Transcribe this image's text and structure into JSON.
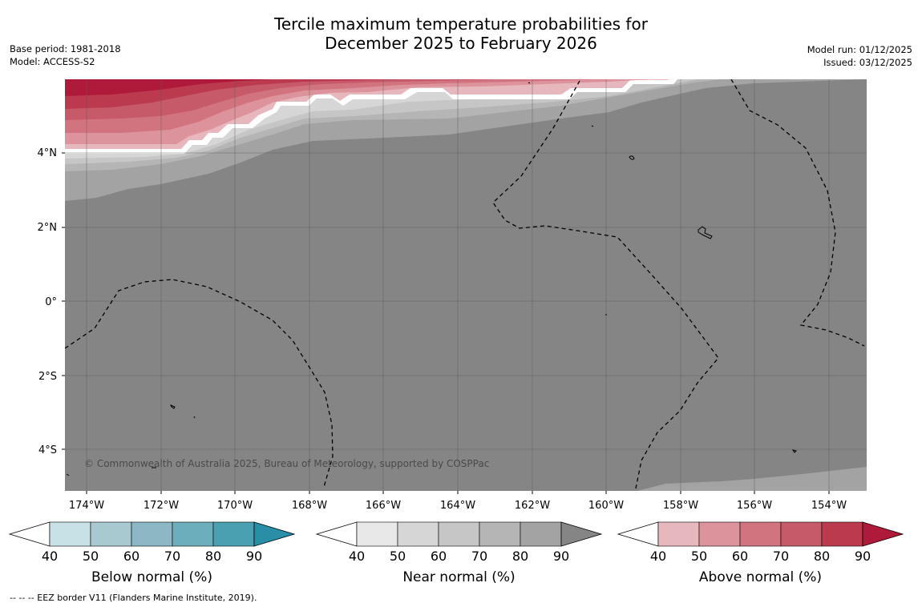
{
  "title_line1": "Tercile maximum temperature probabilities for",
  "title_line2": "December 2025 to February 2026",
  "base_period": "Base period: 1981-2018",
  "model": "Model: ACCESS-S2",
  "model_run": "Model run: 01/12/2025",
  "issued": "Issued: 03/12/2025",
  "lat_labels": [
    "4°N",
    "2°N",
    "0°",
    "2°S",
    "4°S"
  ],
  "lon_labels": [
    "174°W",
    "172°W",
    "170°W",
    "168°W",
    "166°W",
    "164°W",
    "162°W",
    "160°W",
    "158°W",
    "156°W",
    "154°W"
  ],
  "copyright": "© Commonwealth of Australia 2025, Bureau of Meteorology, supported by COSPPac",
  "footnote": "--  --  -- EEZ border V11 (Flanders Marine Institute, 2019).",
  "colorbars": [
    {
      "title": "Below normal (%)",
      "ticks": [
        "40",
        "50",
        "60",
        "70",
        "80",
        "90"
      ],
      "colors": [
        "#ffffff",
        "#c8e1e7",
        "#a9c9d0",
        "#8bb8c4",
        "#6caebb",
        "#4aa0b0",
        "#2a8ea6"
      ]
    },
    {
      "title": "Near normal (%)",
      "ticks": [
        "40",
        "50",
        "60",
        "70",
        "80",
        "90"
      ],
      "colors": [
        "#ffffff",
        "#e8e8e8",
        "#d6d6d6",
        "#c6c6c6",
        "#b5b5b5",
        "#a3a3a3",
        "#858585"
      ]
    },
    {
      "title": "Above normal (%)",
      "ticks": [
        "40",
        "50",
        "60",
        "70",
        "80",
        "90"
      ],
      "colors": [
        "#ffffff",
        "#e6b8bd",
        "#dd939b",
        "#d27480",
        "#c65a68",
        "#bb3a4e",
        "#b01a3a"
      ]
    }
  ]
}
